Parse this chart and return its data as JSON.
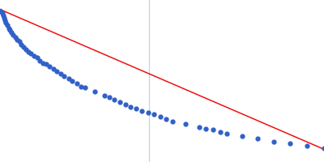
{
  "scatter_x": [
    0.0004,
    0.0009,
    0.00122,
    0.0016,
    0.002,
    0.0025,
    0.003,
    0.0036,
    0.0042,
    0.0049,
    0.0056,
    0.0064,
    0.0072,
    0.0081,
    0.009,
    0.01,
    0.011,
    0.012,
    0.013,
    0.0144,
    0.0156,
    0.0169,
    0.0182,
    0.0196,
    0.021,
    0.0225,
    0.024,
    0.0256,
    0.0272,
    0.029,
    0.0306,
    0.0324,
    0.0342,
    0.036,
    0.04,
    0.0441,
    0.0462,
    0.0484,
    0.0506,
    0.0529,
    0.0552,
    0.0576,
    0.06,
    0.0625,
    0.065,
    0.0676,
    0.0702,
    0.0729,
    0.0784,
    0.0841,
    0.087,
    0.09,
    0.093,
    0.096,
    0.1024,
    0.1089,
    0.1156,
    0.1225,
    0.1296,
    0.1369
  ],
  "scatter_y": [
    3.62,
    3.61,
    3.595,
    3.578,
    3.558,
    3.542,
    3.524,
    3.504,
    3.492,
    3.476,
    3.458,
    3.442,
    3.424,
    3.412,
    3.394,
    3.377,
    3.358,
    3.342,
    3.332,
    3.316,
    3.302,
    3.282,
    3.263,
    3.258,
    3.243,
    3.223,
    3.208,
    3.188,
    3.172,
    3.158,
    3.142,
    3.124,
    3.102,
    3.093,
    3.068,
    3.042,
    3.028,
    3.013,
    2.992,
    2.978,
    2.962,
    2.948,
    2.933,
    2.922,
    2.908,
    2.892,
    2.877,
    2.862,
    2.843,
    2.823,
    2.812,
    2.802,
    2.786,
    2.778,
    2.757,
    2.742,
    2.722,
    2.707,
    2.692,
    2.677
  ],
  "scatter_yerr": [
    0.025,
    0.022,
    0.02,
    0.018,
    0.017,
    0.016,
    0.015,
    0.014,
    0.013,
    0.013,
    0.012,
    0.012,
    0.011,
    0.011,
    0.01,
    0.01,
    0.01,
    0.009,
    0.009,
    0.009,
    0.009,
    0.009,
    0.009,
    0.009,
    0.009,
    0.009,
    0.009,
    0.009,
    0.009,
    0.009,
    0.009,
    0.009,
    0.009,
    0.009,
    0.009,
    0.009,
    0.009,
    0.009,
    0.009,
    0.009,
    0.009,
    0.009,
    0.009,
    0.009,
    0.009,
    0.009,
    0.009,
    0.009,
    0.009,
    0.009,
    0.009,
    0.009,
    0.009,
    0.009,
    0.009,
    0.009,
    0.009,
    0.009,
    0.009,
    0.009
  ],
  "line_x": [
    0.0,
    0.1369
  ],
  "line_y": [
    3.635,
    2.668
  ],
  "vline_x": 0.063,
  "vline_color": "#b8d8f0",
  "dot_color": "#3060c8",
  "line_color": "#ee1010",
  "bg_color": "#ffffff",
  "xlim": [
    0.0,
    0.1369
  ],
  "ylim": [
    2.58,
    3.7
  ],
  "markersize": 3.5,
  "linewidth": 1.1
}
